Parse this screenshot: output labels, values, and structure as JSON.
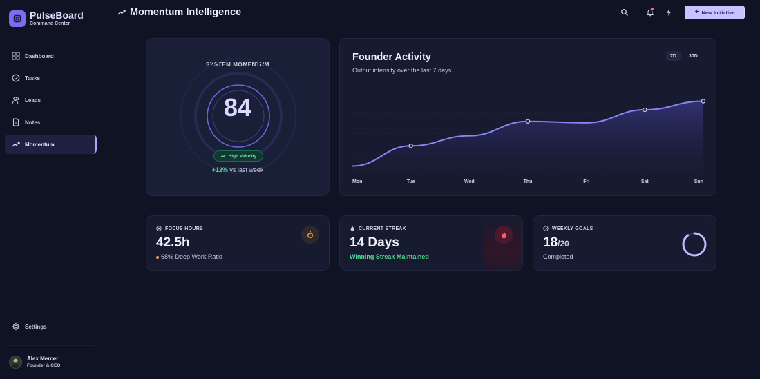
{
  "brand": {
    "name": "PulseBoard",
    "subtitle": "Command Center"
  },
  "nav": [
    {
      "label": "Dashboard",
      "icon": "dashboard-icon",
      "active": false
    },
    {
      "label": "Tasks",
      "icon": "check-circle-icon",
      "active": false
    },
    {
      "label": "Leads",
      "icon": "users-icon",
      "active": false
    },
    {
      "label": "Notes",
      "icon": "document-icon",
      "active": false
    },
    {
      "label": "Momentum",
      "icon": "trend-icon",
      "active": true
    }
  ],
  "settings_label": "Settings",
  "user": {
    "name": "Alex Mercer",
    "role": "Founder & CEO"
  },
  "header": {
    "title": "Momentum Intelligence",
    "new_button": "New Initiative"
  },
  "momentum": {
    "label": "SYSTEM MOMENTUM",
    "value": "84",
    "ring_fraction": 0.84,
    "badge": "High Velocity",
    "change_pct": "+12%",
    "change_text": " vs last week"
  },
  "activity": {
    "title": "Founder Activity",
    "subtitle": "Output intensity over the last 7 days",
    "ranges": [
      "7D",
      "30D"
    ],
    "active_range": "7D"
  },
  "chart_data": {
    "type": "area",
    "categories": [
      "Mon",
      "Tue",
      "Wed",
      "Thu",
      "Fri",
      "Sat",
      "Sun"
    ],
    "values": [
      10,
      38,
      52,
      72,
      70,
      88,
      100
    ],
    "markers": [
      1,
      3,
      5,
      6
    ],
    "ylim": [
      0,
      110
    ],
    "grid": true,
    "colors": {
      "line": "#8b84f5",
      "fill": "#3a3a8a"
    }
  },
  "stats": {
    "focus": {
      "label": "FOCUS HOURS",
      "value": "42.5h",
      "sub": "68% Deep Work Ratio"
    },
    "streak": {
      "label": "CURRENT STREAK",
      "value": "14 Days",
      "sub": "Winning Streak Maintained"
    },
    "goals": {
      "label": "WEEKLY GOALS",
      "value": "18",
      "denom": "/20",
      "sub": "Completed",
      "fraction": 0.9
    }
  },
  "colors": {
    "accent": "#c7c2ff",
    "brand": "#7b6cf0",
    "positive": "#4fd98f",
    "background": "#0f1324"
  }
}
